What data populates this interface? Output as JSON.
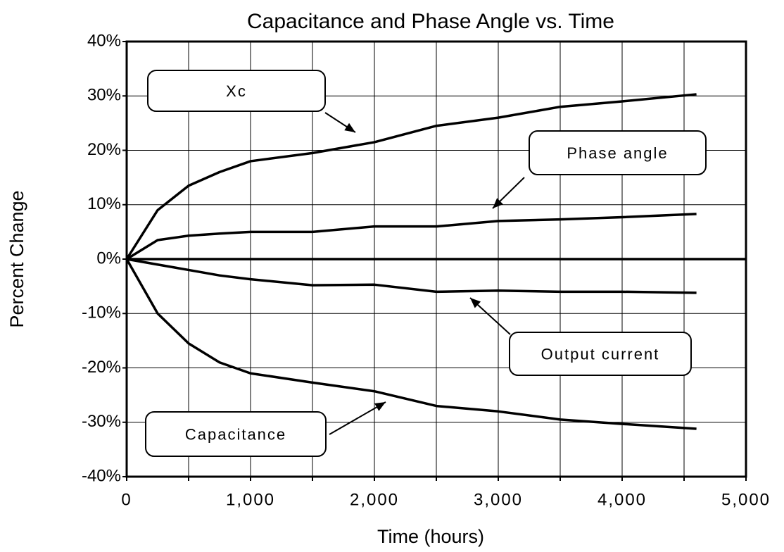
{
  "chart_data": {
    "type": "line",
    "title": "Capacitance and Phase Angle vs. Time",
    "xlabel": "Time (hours)",
    "ylabel": "Percent Change",
    "xlim": [
      0,
      5000
    ],
    "xticks": [
      0,
      {
        "value": 1000,
        "label": "1,000"
      },
      {
        "value": 2000,
        "label": "2,000"
      },
      {
        "value": 3000,
        "label": "3,000"
      },
      {
        "value": 4000,
        "label": "4,000"
      },
      {
        "value": 5000,
        "label": "5,000"
      }
    ],
    "xminor": [
      500,
      1500,
      2500,
      3500,
      4500
    ],
    "ylim": [
      -40,
      40
    ],
    "yticks": [
      {
        "value": -40,
        "label": "-40%"
      },
      {
        "value": -30,
        "label": "-30%"
      },
      {
        "value": -20,
        "label": "-20%"
      },
      {
        "value": -10,
        "label": "-10%"
      },
      {
        "value": 0,
        "label": "0%"
      },
      {
        "value": 10,
        "label": "10%"
      },
      {
        "value": 20,
        "label": "20%"
      },
      {
        "value": 30,
        "label": "30%"
      },
      {
        "value": 40,
        "label": "40%"
      }
    ],
    "grid": true,
    "x": [
      0,
      250,
      500,
      750,
      1000,
      1500,
      2000,
      2500,
      3000,
      3500,
      4000,
      4600
    ],
    "series": [
      {
        "name": "Xc",
        "color": "#000000",
        "values": [
          0,
          9,
          13.5,
          16,
          18,
          19.5,
          21.5,
          24.5,
          26,
          28,
          29,
          30.3
        ]
      },
      {
        "name": "Phase angle",
        "color": "#000000",
        "values": [
          0,
          3.5,
          4.3,
          4.7,
          5,
          5,
          6,
          6,
          7,
          7.3,
          7.7,
          8.3
        ]
      },
      {
        "name": "Output current",
        "color": "#000000",
        "values": [
          0,
          -1,
          -2,
          -3,
          -3.7,
          -4.8,
          -4.7,
          -6,
          -5.8,
          -6,
          -6,
          -6.2
        ]
      },
      {
        "name": "Capacitance",
        "color": "#000000",
        "values": [
          0,
          -10,
          -15.5,
          -19,
          -21,
          -22.7,
          -24.3,
          -27,
          -28,
          -29.5,
          -30.3,
          -31.2
        ]
      }
    ]
  }
}
